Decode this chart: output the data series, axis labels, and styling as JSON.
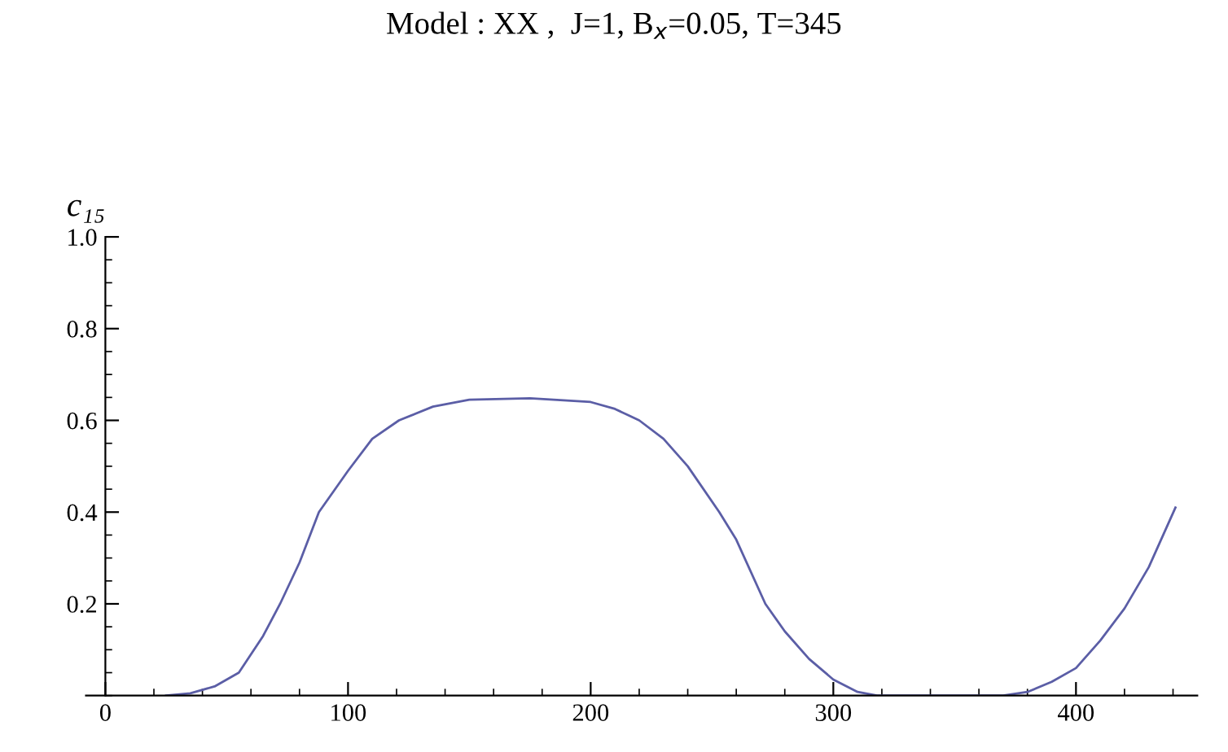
{
  "chart_data": {
    "type": "line",
    "title": "Model : XX ,  J=1, B$_{x}$=0.05, T=345",
    "ylabel": "c₁₅",
    "xlim": [
      -8,
      450
    ],
    "ylim": [
      0,
      1.0
    ],
    "xticks": [
      0,
      100,
      200,
      300,
      400
    ],
    "yticks": [
      0.2,
      0.4,
      0.6,
      0.8,
      {
        "value": 1.0,
        "label": "1.0"
      }
    ],
    "grid": false,
    "marker": "none",
    "line_style": "solid",
    "series": [
      {
        "color": "#5b5ea6",
        "x": [
          25,
          35,
          45,
          55,
          60,
          65,
          72,
          80,
          88,
          100,
          110,
          121,
          135,
          150,
          175,
          200,
          210,
          220,
          230,
          240,
          253,
          260,
          272,
          280,
          290,
          300,
          310,
          318,
          370,
          380,
          390,
          400,
          410,
          420,
          430,
          441
        ],
        "values": [
          0,
          0.005,
          0.02,
          0.05,
          0.09,
          0.13,
          0.2,
          0.29,
          0.4,
          0.49,
          0.56,
          0.6,
          0.63,
          0.645,
          0.648,
          0.64,
          0.625,
          0.6,
          0.56,
          0.5,
          0.4,
          0.34,
          0.2,
          0.14,
          0.08,
          0.035,
          0.008,
          0,
          0,
          0.008,
          0.03,
          0.06,
          0.12,
          0.19,
          0.28,
          0.41
        ]
      }
    ]
  }
}
